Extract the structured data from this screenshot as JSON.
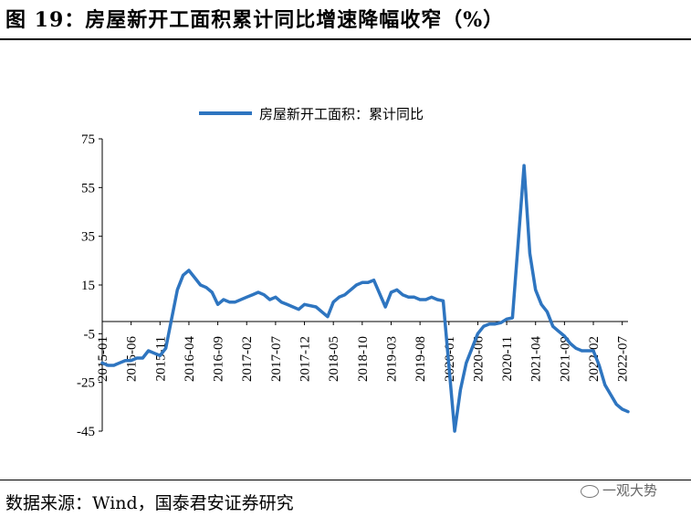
{
  "header": {
    "figure_title": "图 19：房屋新开工面积累计同比增速降幅收窄（%）"
  },
  "footer": {
    "source": "数据来源：Wind，国泰君安证券研究",
    "watermark": "一观大势"
  },
  "chart_data": {
    "type": "line",
    "title": "",
    "xlabel": "",
    "ylabel": "",
    "ylim": [
      -45,
      75
    ],
    "yticks": [
      75,
      55,
      35,
      15,
      -5,
      -25,
      -45
    ],
    "legend_position": "top",
    "series": [
      {
        "name": "房屋新开工面积：累计同比",
        "color": "#2E75C0",
        "x": [
          "2015-01",
          "2015-02",
          "2015-03",
          "2015-04",
          "2015-05",
          "2015-06",
          "2015-07",
          "2015-08",
          "2015-09",
          "2015-10",
          "2015-11",
          "2015-12",
          "2016-02",
          "2016-03",
          "2016-04",
          "2016-05",
          "2016-06",
          "2016-07",
          "2016-08",
          "2016-09",
          "2016-10",
          "2016-11",
          "2016-12",
          "2017-02",
          "2017-03",
          "2017-04",
          "2017-05",
          "2017-06",
          "2017-07",
          "2017-08",
          "2017-09",
          "2017-10",
          "2017-11",
          "2017-12",
          "2018-02",
          "2018-03",
          "2018-04",
          "2018-05",
          "2018-06",
          "2018-07",
          "2018-08",
          "2018-09",
          "2018-10",
          "2018-11",
          "2018-12",
          "2019-02",
          "2019-03",
          "2019-04",
          "2019-05",
          "2019-06",
          "2019-07",
          "2019-08",
          "2019-09",
          "2019-10",
          "2019-11",
          "2019-12",
          "2020-02",
          "2020-03",
          "2020-04",
          "2020-05",
          "2020-06",
          "2020-07",
          "2020-08",
          "2020-09",
          "2020-10",
          "2020-11",
          "2020-12",
          "2021-02",
          "2021-03",
          "2021-04",
          "2021-05",
          "2021-06",
          "2021-07",
          "2021-08",
          "2021-09",
          "2021-10",
          "2021-11",
          "2021-12",
          "2022-02",
          "2022-03",
          "2022-04",
          "2022-05",
          "2022-06",
          "2022-07",
          "2022-08"
        ],
        "values": [
          -17,
          -18,
          -18,
          -17,
          -16,
          -16,
          -15,
          -15,
          -12,
          -13,
          -14,
          -11,
          13,
          19,
          21,
          18,
          15,
          14,
          12,
          7,
          9,
          8,
          8,
          10,
          11,
          12,
          11,
          9,
          10,
          8,
          7,
          6,
          5,
          7,
          6,
          4,
          2,
          8,
          10,
          11,
          13,
          15,
          16,
          16,
          17,
          6,
          12,
          13,
          11,
          10,
          10,
          9,
          9,
          10,
          9,
          8.5,
          -45,
          -28,
          -17,
          -11,
          -5,
          -2,
          -1,
          -1,
          -0.5,
          1,
          1.5,
          64,
          28,
          13,
          7,
          4,
          -2,
          -4,
          -6,
          -9,
          -11,
          -12,
          -12,
          -18,
          -26,
          -30,
          -34,
          -36,
          -37
        ]
      }
    ],
    "x_tick_labels": [
      "2015-01",
      "2015-06",
      "2015-11",
      "2016-04",
      "2016-09",
      "2017-02",
      "2017-07",
      "2017-12",
      "2018-05",
      "2018-10",
      "2019-03",
      "2019-08",
      "2020-01",
      "2020-06",
      "2020-11",
      "2021-04",
      "2021-09",
      "2022-02",
      "2022-07"
    ]
  }
}
